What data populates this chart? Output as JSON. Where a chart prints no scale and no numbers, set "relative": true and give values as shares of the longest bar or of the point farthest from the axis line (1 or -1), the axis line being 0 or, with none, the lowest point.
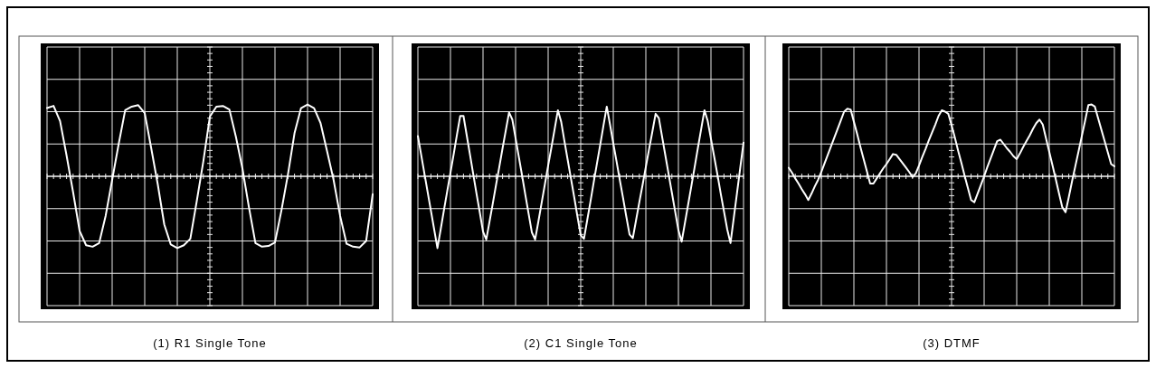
{
  "chart_data": [
    {
      "type": "line",
      "title": "(1) R1 Single Tone",
      "relative": true,
      "grid": true,
      "categories": [
        null,
        null,
        null,
        null,
        null,
        null,
        null,
        null,
        null,
        null,
        null,
        null,
        null,
        null,
        null,
        null,
        null,
        null,
        null,
        null,
        null,
        null,
        null,
        null,
        null,
        null,
        null,
        null,
        null,
        null,
        null,
        null,
        null,
        null,
        null,
        null,
        null,
        null,
        null,
        null,
        null,
        null,
        null,
        null,
        null,
        null,
        null,
        null,
        null,
        null,
        null
      ],
      "series": [
        {
          "color": "#ffffff",
          "values": [
            0.95,
            0.98,
            0.77,
            0.29,
            -0.22,
            -0.76,
            -0.96,
            -0.98,
            -0.93,
            -0.55,
            -0.05,
            0.45,
            0.92,
            0.97,
            0.99,
            0.88,
            0.39,
            -0.11,
            -0.67,
            -0.95,
            -1,
            -0.96,
            -0.87,
            -0.34,
            0.21,
            0.83,
            0.97,
            0.98,
            0.93,
            0.55,
            0.11,
            -0.43,
            -0.93,
            -0.98,
            -0.97,
            -0.92,
            -0.47,
            0.03,
            0.6,
            0.95,
            1,
            0.95,
            0.74,
            0.35,
            -0.05,
            -0.55,
            -0.94,
            -0.98,
            -0.99,
            -0.9,
            -0.25
          ]
        }
      ]
    },
    {
      "type": "line",
      "title": "(2) C1 Single Tone",
      "relative": true,
      "grid": true,
      "categories": [
        null,
        null,
        null,
        null,
        null,
        null,
        null,
        null,
        null,
        null,
        null,
        null,
        null,
        null,
        null,
        null,
        null,
        null,
        null,
        null,
        null,
        null,
        null,
        null,
        null,
        null,
        null,
        null,
        null,
        null,
        null,
        null,
        null,
        null,
        null,
        null,
        null,
        null,
        null,
        null,
        null,
        null,
        null,
        null,
        null,
        null,
        null,
        null,
        null,
        null,
        null,
        null,
        null,
        null,
        null,
        null,
        null,
        null,
        null,
        null,
        null,
        null,
        null,
        null,
        null,
        null,
        null,
        null,
        null,
        null,
        null,
        null,
        null,
        null,
        null,
        null,
        null,
        null,
        null,
        null,
        null,
        null,
        null,
        null,
        null,
        null,
        null,
        null,
        null,
        null,
        null,
        null,
        null,
        null,
        null,
        null,
        null,
        null,
        null,
        null,
        null
      ],
      "series": [
        {
          "color": "#ffffff",
          "values": [
            0.56,
            0.3,
            0.04,
            -0.22,
            -0.48,
            -0.74,
            -1,
            -0.74,
            -0.47,
            -0.21,
            0.05,
            0.31,
            0.58,
            0.84,
            0.84,
            0.57,
            0.3,
            0.03,
            -0.24,
            -0.5,
            -0.77,
            -0.88,
            -0.63,
            -0.38,
            -0.12,
            0.13,
            0.39,
            0.64,
            0.89,
            0.79,
            0.53,
            0.27,
            0.01,
            -0.26,
            -0.52,
            -0.78,
            -0.88,
            -0.63,
            -0.37,
            -0.11,
            0.15,
            0.4,
            0.66,
            0.92,
            0.76,
            0.49,
            0.23,
            -0.03,
            -0.29,
            -0.56,
            -0.82,
            -0.87,
            -0.61,
            -0.35,
            -0.08,
            0.18,
            0.44,
            0.71,
            0.97,
            0.72,
            0.46,
            0.21,
            -0.05,
            -0.3,
            -0.56,
            -0.81,
            -0.86,
            -0.61,
            -0.36,
            -0.12,
            0.13,
            0.38,
            0.62,
            0.87,
            0.81,
            0.55,
            0.29,
            0.03,
            -0.23,
            -0.49,
            -0.75,
            -0.91,
            -0.65,
            -0.39,
            -0.13,
            0.13,
            0.4,
            0.66,
            0.92,
            0.77,
            0.52,
            0.27,
            0.02,
            -0.24,
            -0.49,
            -0.74,
            -0.93,
            -0.58,
            -0.23,
            0.12,
            0.47
          ]
        }
      ]
    },
    {
      "type": "line",
      "title": "(3) DTMF",
      "relative": true,
      "grid": true,
      "categories": [
        null,
        null,
        null,
        null,
        null,
        null,
        null,
        null,
        null,
        null,
        null,
        null,
        null,
        null,
        null,
        null,
        null,
        null,
        null,
        null,
        null,
        null,
        null,
        null,
        null,
        null,
        null,
        null,
        null,
        null,
        null,
        null,
        null,
        null,
        null,
        null,
        null,
        null,
        null,
        null,
        null,
        null,
        null,
        null,
        null,
        null,
        null,
        null,
        null,
        null,
        null,
        null,
        null,
        null,
        null,
        null,
        null,
        null,
        null,
        null,
        null,
        null,
        null,
        null,
        null,
        null,
        null,
        null,
        null,
        null,
        null,
        null,
        null,
        null,
        null,
        null,
        null,
        null,
        null,
        null,
        null,
        null,
        null,
        null,
        null,
        null,
        null,
        null,
        null,
        null,
        null,
        null,
        null,
        null,
        null,
        null,
        null,
        null,
        null,
        null,
        null
      ],
      "series": [
        {
          "color": "#ffffff",
          "values": [
            0.12,
            0.05,
            -0.03,
            -0.1,
            -0.18,
            -0.25,
            -0.33,
            -0.24,
            -0.14,
            -0.05,
            0.06,
            0.18,
            0.3,
            0.42,
            0.54,
            0.66,
            0.78,
            0.9,
            0.94,
            0.93,
            0.76,
            0.59,
            0.41,
            0.24,
            0.07,
            -0.1,
            -0.1,
            -0.03,
            0.04,
            0.11,
            0.17,
            0.24,
            0.31,
            0.3,
            0.24,
            0.18,
            0.12,
            0.06,
            -0.01,
            0.04,
            0.15,
            0.27,
            0.38,
            0.5,
            0.61,
            0.72,
            0.84,
            0.92,
            0.9,
            0.87,
            0.71,
            0.54,
            0.36,
            0.19,
            0.01,
            -0.16,
            -0.33,
            -0.36,
            -0.24,
            -0.12,
            0,
            0.13,
            0.25,
            0.37,
            0.49,
            0.51,
            0.45,
            0.39,
            0.34,
            0.28,
            0.24,
            0.32,
            0.41,
            0.49,
            0.57,
            0.66,
            0.74,
            0.79,
            0.72,
            0.53,
            0.34,
            0.15,
            -0.04,
            -0.24,
            -0.43,
            -0.5,
            -0.29,
            -0.07,
            0.14,
            0.35,
            0.56,
            0.77,
            0.99,
            1,
            0.97,
            0.81,
            0.65,
            0.49,
            0.33,
            0.17,
            0.14
          ]
        }
      ]
    }
  ]
}
